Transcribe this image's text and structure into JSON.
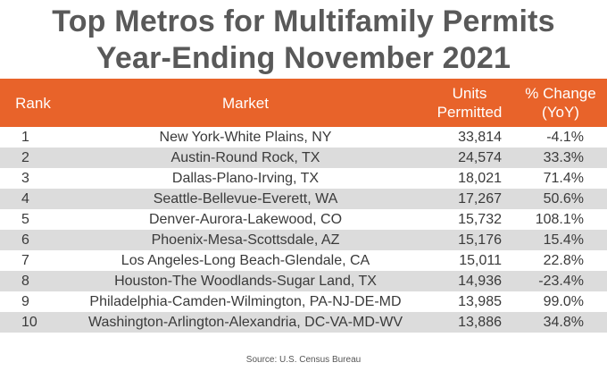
{
  "title_line1": "Top Metros for Multifamily Permits",
  "title_line2": "Year-Ending November 2021",
  "headers": {
    "rank": "Rank",
    "market": "Market",
    "units_line1": "Units",
    "units_line2": "Permitted",
    "change_line1": "% Change",
    "change_line2": "(YoY)"
  },
  "colors": {
    "header_bg": "#e8632a",
    "stripe": "#dcdcdc",
    "title": "#595959"
  },
  "source": "Source: U.S. Census Bureau",
  "chart_data": {
    "type": "table",
    "columns": [
      "Rank",
      "Market",
      "Units Permitted",
      "% Change (YoY)"
    ],
    "rows": [
      {
        "rank": "1",
        "market": "New York-White Plains, NY",
        "units": "33,814",
        "change": "-4.1%"
      },
      {
        "rank": "2",
        "market": "Austin-Round Rock, TX",
        "units": "24,574",
        "change": "33.3%"
      },
      {
        "rank": "3",
        "market": "Dallas-Plano-Irving, TX",
        "units": "18,021",
        "change": "71.4%"
      },
      {
        "rank": "4",
        "market": "Seattle-Bellevue-Everett, WA",
        "units": "17,267",
        "change": "50.6%"
      },
      {
        "rank": "5",
        "market": "Denver-Aurora-Lakewood, CO",
        "units": "15,732",
        "change": "108.1%"
      },
      {
        "rank": "6",
        "market": "Phoenix-Mesa-Scottsdale, AZ",
        "units": "15,176",
        "change": "15.4%"
      },
      {
        "rank": "7",
        "market": "Los Angeles-Long Beach-Glendale, CA",
        "units": "15,011",
        "change": "22.8%"
      },
      {
        "rank": "8",
        "market": "Houston-The Woodlands-Sugar Land, TX",
        "units": "14,936",
        "change": "-23.4%"
      },
      {
        "rank": "9",
        "market": "Philadelphia-Camden-Wilmington, PA-NJ-DE-MD",
        "units": "13,985",
        "change": "99.0%"
      },
      {
        "rank": "10",
        "market": "Washington-Arlington-Alexandria, DC-VA-MD-WV",
        "units": "13,886",
        "change": "34.8%"
      }
    ]
  }
}
